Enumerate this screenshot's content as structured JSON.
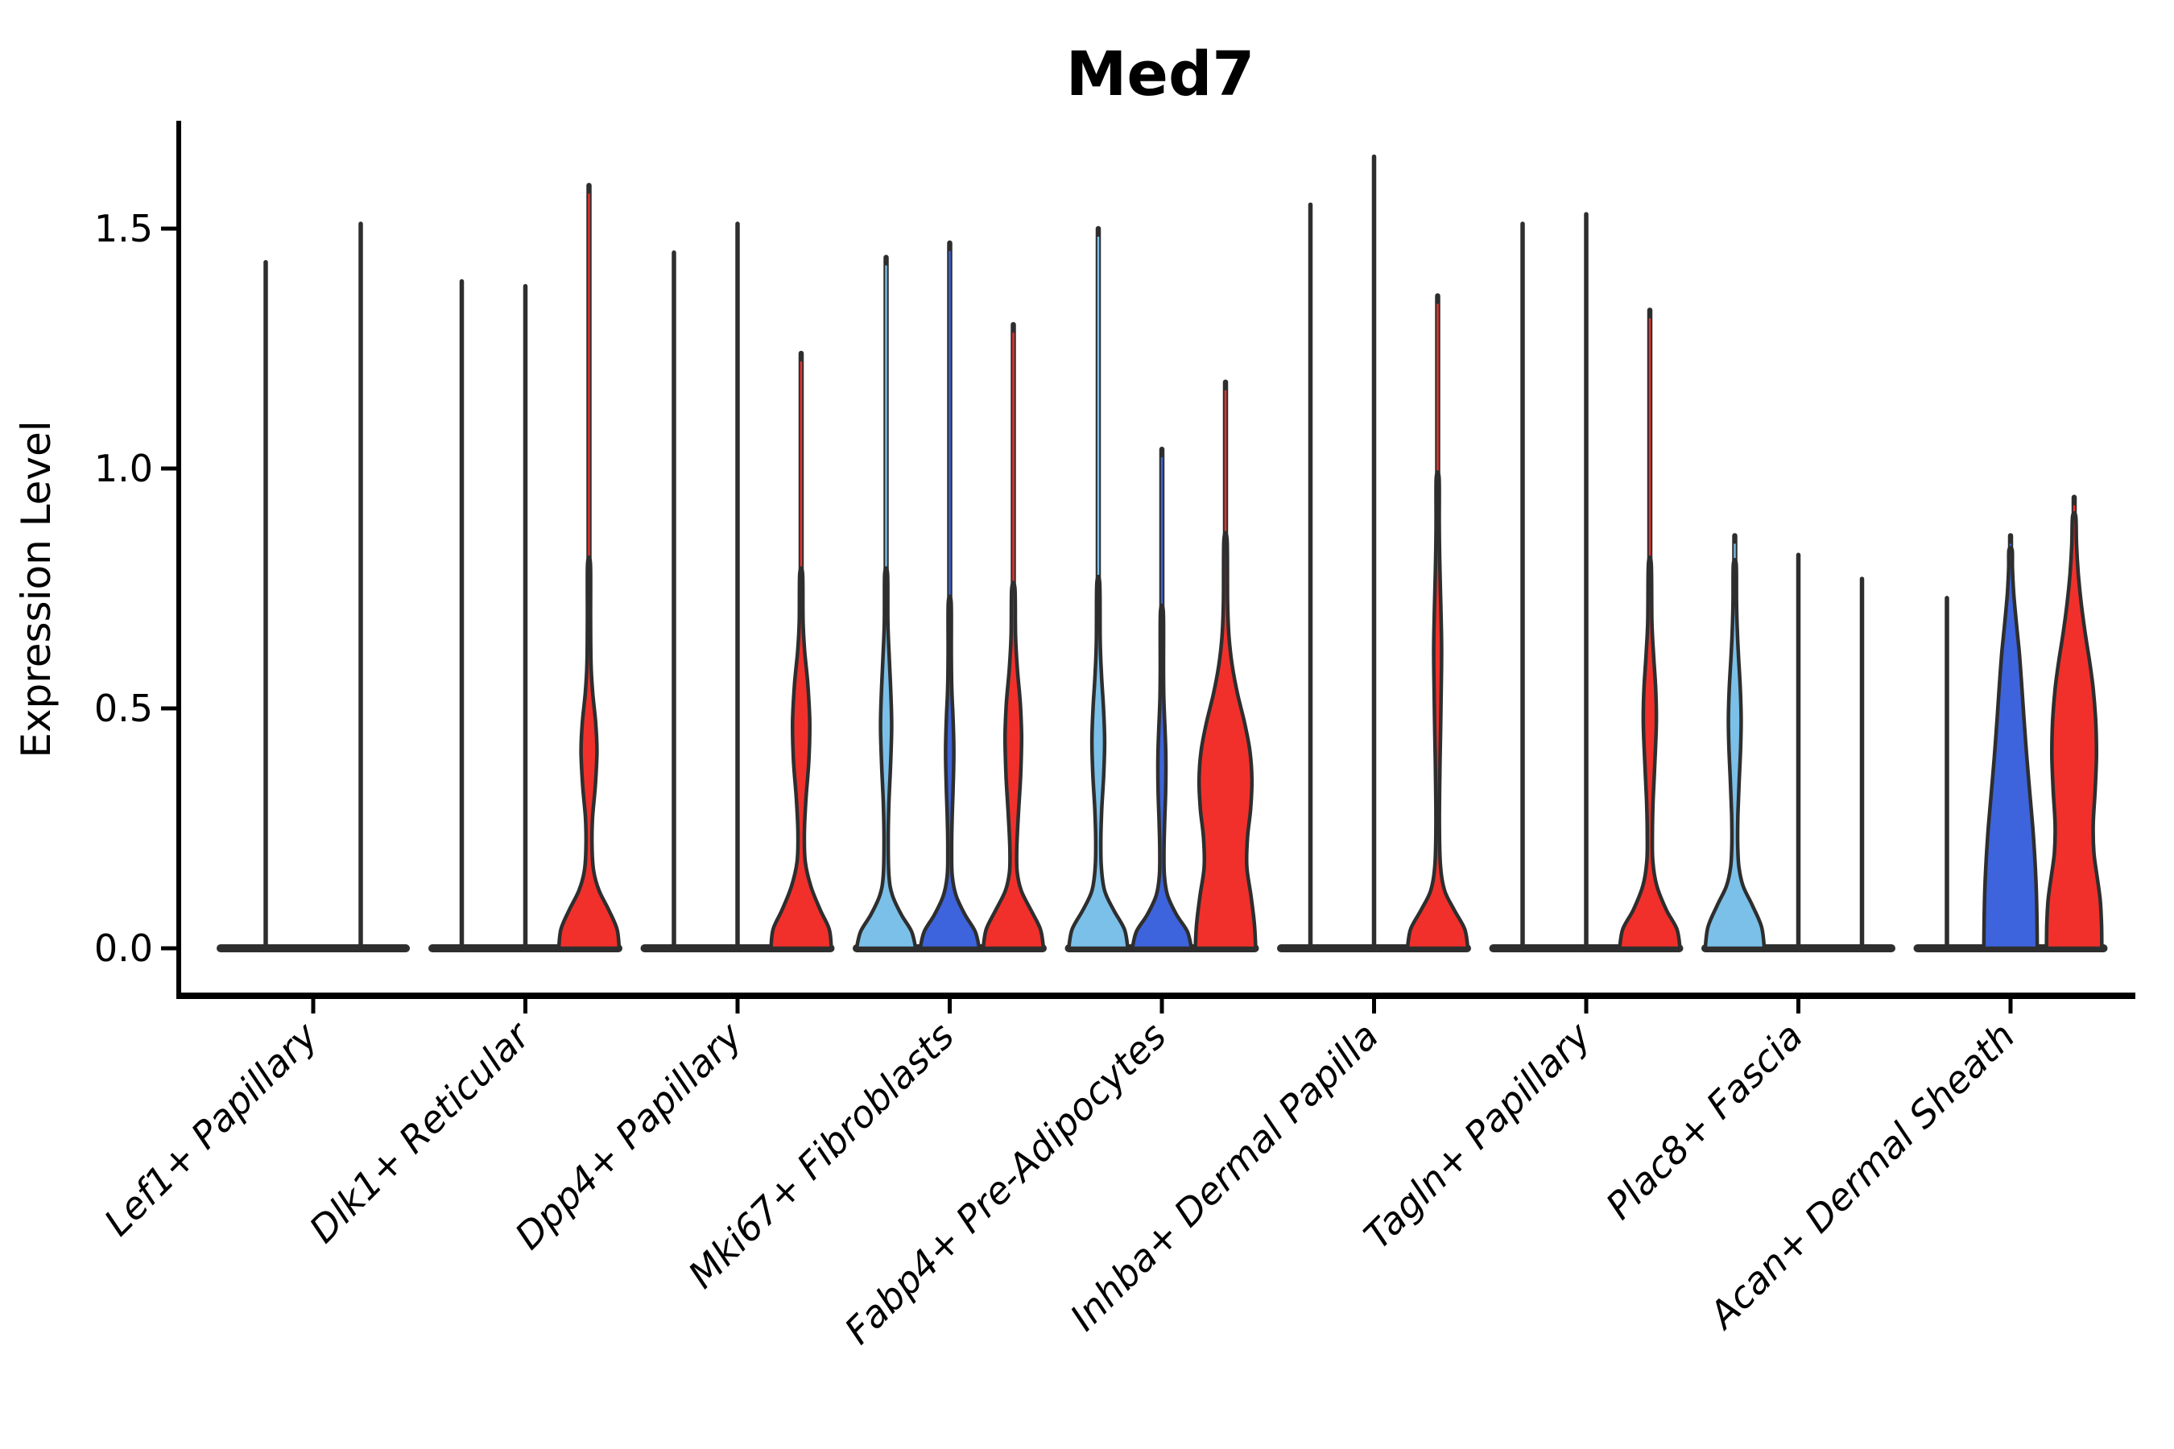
{
  "chart": {
    "title": "Med7",
    "ylabel": "Expression Level"
  },
  "chart_data": {
    "type": "violin",
    "title": "Med7",
    "xlabel": "",
    "ylabel": "Expression Level",
    "ylim": [
      0,
      1.75
    ],
    "grid": false,
    "legend": "none",
    "yticks": [
      {
        "label": "0.0",
        "value": 0.0
      },
      {
        "label": "0.5",
        "value": 0.5
      },
      {
        "label": "1.0",
        "value": 1.0
      },
      {
        "label": "1.5",
        "value": 1.5
      }
    ],
    "palette": {
      "lightblue": "#7bc0e8",
      "darkblue": "#3d64dc",
      "red": "#f1302b",
      "outline": "#2e2e2e",
      "axis": "#000000",
      "background": "#ffffff"
    },
    "note": "Each cell-type group shows split violins (colors: lightblue, darkblue, red). 'collapsed' violins are flattened at 0 with only a thin tail line up to max_expression. profile = [expression, half-width fraction] pairs.",
    "categories": [
      "Lef1+ Papillary",
      "Dlk1+ Reticular",
      "Dpp4+ Papillary",
      "Mki67+ Fibroblasts",
      "Fabp4+ Pre-Adipocytes",
      "Inhba+ Dermal Papilla",
      "Tagln+ Papillary",
      "Plac8+ Fascia",
      "Acan+ Dermal Sheath"
    ],
    "groups": [
      {
        "label": "Lef1+ Papillary",
        "violins": [
          {
            "series": "collapsed",
            "color": "flat",
            "max_expression": 1.43,
            "profile": []
          },
          {
            "series": "collapsed",
            "color": "flat",
            "max_expression": 1.51,
            "profile": []
          }
        ]
      },
      {
        "label": "Dlk1+ Reticular",
        "violins": [
          {
            "series": "collapsed",
            "color": "flat",
            "max_expression": 1.39,
            "profile": []
          },
          {
            "series": "collapsed",
            "color": "flat",
            "max_expression": 1.38,
            "profile": []
          },
          {
            "series": "red",
            "color": "red",
            "max_expression": 1.59,
            "profile": [
              [
                0,
                0.95
              ],
              [
                0.04,
                0.88
              ],
              [
                0.08,
                0.62
              ],
              [
                0.12,
                0.32
              ],
              [
                0.16,
                0.15
              ],
              [
                0.21,
                0.095
              ],
              [
                0.27,
                0.11
              ],
              [
                0.34,
                0.2
              ],
              [
                0.41,
                0.25
              ],
              [
                0.47,
                0.21
              ],
              [
                0.53,
                0.12
              ],
              [
                0.59,
                0.065
              ],
              [
                0.68,
                0.05
              ],
              [
                0.8,
                0.045
              ]
            ]
          }
        ]
      },
      {
        "label": "Dpp4+ Papillary",
        "violins": [
          {
            "series": "collapsed",
            "color": "flat",
            "max_expression": 1.45,
            "profile": []
          },
          {
            "series": "collapsed",
            "color": "flat",
            "max_expression": 1.51,
            "profile": []
          },
          {
            "series": "red",
            "color": "red",
            "max_expression": 1.24,
            "profile": [
              [
                0,
                0.95
              ],
              [
                0.04,
                0.88
              ],
              [
                0.08,
                0.6
              ],
              [
                0.13,
                0.3
              ],
              [
                0.18,
                0.13
              ],
              [
                0.24,
                0.1
              ],
              [
                0.31,
                0.15
              ],
              [
                0.39,
                0.24
              ],
              [
                0.47,
                0.27
              ],
              [
                0.55,
                0.21
              ],
              [
                0.62,
                0.11
              ],
              [
                0.68,
                0.06
              ],
              [
                0.78,
                0.045
              ]
            ]
          }
        ]
      },
      {
        "label": "Mki67+ Fibroblasts",
        "violins": [
          {
            "series": "lightblue",
            "color": "lightblue",
            "max_expression": 1.44,
            "profile": [
              [
                0,
                0.93
              ],
              [
                0.035,
                0.8
              ],
              [
                0.07,
                0.48
              ],
              [
                0.11,
                0.2
              ],
              [
                0.15,
                0.09
              ],
              [
                0.22,
                0.065
              ],
              [
                0.3,
                0.085
              ],
              [
                0.38,
                0.14
              ],
              [
                0.46,
                0.175
              ],
              [
                0.53,
                0.15
              ],
              [
                0.61,
                0.095
              ],
              [
                0.68,
                0.055
              ],
              [
                0.78,
                0.045
              ]
            ]
          },
          {
            "series": "darkblue",
            "color": "darkblue",
            "max_expression": 1.47,
            "profile": [
              [
                0,
                0.93
              ],
              [
                0.035,
                0.8
              ],
              [
                0.07,
                0.48
              ],
              [
                0.11,
                0.2
              ],
              [
                0.15,
                0.08
              ],
              [
                0.2,
                0.06
              ],
              [
                0.27,
                0.075
              ],
              [
                0.34,
                0.11
              ],
              [
                0.41,
                0.13
              ],
              [
                0.48,
                0.105
              ],
              [
                0.54,
                0.065
              ],
              [
                0.61,
                0.05
              ],
              [
                0.72,
                0.045
              ]
            ]
          },
          {
            "series": "red",
            "color": "red",
            "max_expression": 1.3,
            "profile": [
              [
                0,
                0.95
              ],
              [
                0.04,
                0.85
              ],
              [
                0.08,
                0.55
              ],
              [
                0.12,
                0.25
              ],
              [
                0.16,
                0.12
              ],
              [
                0.21,
                0.11
              ],
              [
                0.28,
                0.16
              ],
              [
                0.36,
                0.23
              ],
              [
                0.44,
                0.26
              ],
              [
                0.51,
                0.22
              ],
              [
                0.58,
                0.13
              ],
              [
                0.65,
                0.07
              ],
              [
                0.75,
                0.05
              ]
            ]
          }
        ]
      },
      {
        "label": "Fabp4+ Pre-Adipocytes",
        "violins": [
          {
            "series": "lightblue",
            "color": "lightblue",
            "max_expression": 1.5,
            "profile": [
              [
                0,
                0.93
              ],
              [
                0.04,
                0.82
              ],
              [
                0.08,
                0.48
              ],
              [
                0.12,
                0.2
              ],
              [
                0.17,
                0.095
              ],
              [
                0.23,
                0.08
              ],
              [
                0.29,
                0.11
              ],
              [
                0.36,
                0.17
              ],
              [
                0.43,
                0.2
              ],
              [
                0.5,
                0.165
              ],
              [
                0.57,
                0.1
              ],
              [
                0.64,
                0.06
              ],
              [
                0.76,
                0.045
              ]
            ]
          },
          {
            "series": "darkblue",
            "color": "darkblue",
            "max_expression": 1.04,
            "profile": [
              [
                0,
                0.93
              ],
              [
                0.035,
                0.8
              ],
              [
                0.07,
                0.46
              ],
              [
                0.11,
                0.18
              ],
              [
                0.15,
                0.08
              ],
              [
                0.2,
                0.065
              ],
              [
                0.26,
                0.085
              ],
              [
                0.33,
                0.12
              ],
              [
                0.4,
                0.125
              ],
              [
                0.46,
                0.095
              ],
              [
                0.52,
                0.06
              ],
              [
                0.58,
                0.05
              ],
              [
                0.7,
                0.045
              ]
            ]
          },
          {
            "series": "red",
            "color": "red",
            "max_expression": 1.18,
            "profile": [
              [
                0,
                0.95
              ],
              [
                0.05,
                0.91
              ],
              [
                0.11,
                0.8
              ],
              [
                0.17,
                0.67
              ],
              [
                0.23,
                0.69
              ],
              [
                0.29,
                0.79
              ],
              [
                0.35,
                0.83
              ],
              [
                0.41,
                0.77
              ],
              [
                0.47,
                0.6
              ],
              [
                0.53,
                0.38
              ],
              [
                0.59,
                0.21
              ],
              [
                0.65,
                0.11
              ],
              [
                0.72,
                0.065
              ],
              [
                0.85,
                0.05
              ]
            ]
          }
        ]
      },
      {
        "label": "Inhba+ Dermal Papilla",
        "violins": [
          {
            "series": "collapsed",
            "color": "flat",
            "max_expression": 1.55,
            "profile": []
          },
          {
            "series": "collapsed",
            "color": "flat",
            "max_expression": 1.65,
            "profile": []
          },
          {
            "series": "red",
            "color": "red",
            "max_expression": 1.36,
            "profile": [
              [
                0,
                0.95
              ],
              [
                0.04,
                0.85
              ],
              [
                0.08,
                0.52
              ],
              [
                0.12,
                0.22
              ],
              [
                0.17,
                0.09
              ],
              [
                0.25,
                0.055
              ],
              [
                0.35,
                0.065
              ],
              [
                0.45,
                0.09
              ],
              [
                0.55,
                0.115
              ],
              [
                0.63,
                0.125
              ],
              [
                0.71,
                0.1
              ],
              [
                0.79,
                0.07
              ],
              [
                0.88,
                0.05
              ],
              [
                0.98,
                0.045
              ]
            ]
          }
        ]
      },
      {
        "label": "Tagln+ Papillary",
        "violins": [
          {
            "series": "collapsed",
            "color": "flat",
            "max_expression": 1.51,
            "profile": []
          },
          {
            "series": "collapsed",
            "color": "flat",
            "max_expression": 1.53,
            "profile": []
          },
          {
            "series": "red",
            "color": "red",
            "max_expression": 1.33,
            "profile": [
              [
                0,
                0.95
              ],
              [
                0.04,
                0.85
              ],
              [
                0.08,
                0.52
              ],
              [
                0.13,
                0.22
              ],
              [
                0.18,
                0.095
              ],
              [
                0.24,
                0.08
              ],
              [
                0.31,
                0.105
              ],
              [
                0.39,
                0.16
              ],
              [
                0.47,
                0.205
              ],
              [
                0.54,
                0.185
              ],
              [
                0.61,
                0.12
              ],
              [
                0.68,
                0.065
              ],
              [
                0.8,
                0.045
              ]
            ]
          }
        ]
      },
      {
        "label": "Plac8+ Fascia",
        "violins": [
          {
            "series": "lightblue",
            "color": "lightblue",
            "max_expression": 0.86,
            "profile": [
              [
                0,
                0.93
              ],
              [
                0.045,
                0.84
              ],
              [
                0.09,
                0.55
              ],
              [
                0.13,
                0.26
              ],
              [
                0.17,
                0.13
              ],
              [
                0.22,
                0.09
              ],
              [
                0.28,
                0.1
              ],
              [
                0.35,
                0.14
              ],
              [
                0.42,
                0.185
              ],
              [
                0.48,
                0.2
              ],
              [
                0.54,
                0.175
              ],
              [
                0.6,
                0.125
              ],
              [
                0.66,
                0.08
              ],
              [
                0.72,
                0.055
              ],
              [
                0.8,
                0.045
              ]
            ]
          },
          {
            "series": "collapsed",
            "color": "flat",
            "max_expression": 0.82,
            "profile": []
          },
          {
            "series": "collapsed",
            "color": "flat",
            "max_expression": 0.77,
            "profile": []
          }
        ]
      },
      {
        "label": "Acan+ Dermal Sheath",
        "violins": [
          {
            "series": "collapsed",
            "color": "flat",
            "max_expression": 0.73,
            "profile": []
          },
          {
            "series": "darkblue",
            "color": "darkblue",
            "max_expression": 0.86,
            "profile": [
              [
                0,
                0.84
              ],
              [
                0.06,
                0.83
              ],
              [
                0.12,
                0.81
              ],
              [
                0.18,
                0.77
              ],
              [
                0.25,
                0.7
              ],
              [
                0.32,
                0.61
              ],
              [
                0.4,
                0.51
              ],
              [
                0.48,
                0.42
              ],
              [
                0.55,
                0.35
              ],
              [
                0.62,
                0.27
              ],
              [
                0.68,
                0.18
              ],
              [
                0.74,
                0.1
              ],
              [
                0.79,
                0.06
              ],
              [
                0.83,
                0.05
              ]
            ]
          },
          {
            "series": "red",
            "color": "red",
            "max_expression": 0.94,
            "profile": [
              [
                0,
                0.87
              ],
              [
                0.05,
                0.86
              ],
              [
                0.1,
                0.82
              ],
              [
                0.15,
                0.72
              ],
              [
                0.2,
                0.62
              ],
              [
                0.26,
                0.6
              ],
              [
                0.33,
                0.66
              ],
              [
                0.4,
                0.7
              ],
              [
                0.47,
                0.68
              ],
              [
                0.54,
                0.6
              ],
              [
                0.6,
                0.48
              ],
              [
                0.66,
                0.34
              ],
              [
                0.72,
                0.22
              ],
              [
                0.78,
                0.13
              ],
              [
                0.84,
                0.075
              ],
              [
                0.9,
                0.05
              ]
            ]
          }
        ]
      }
    ]
  }
}
